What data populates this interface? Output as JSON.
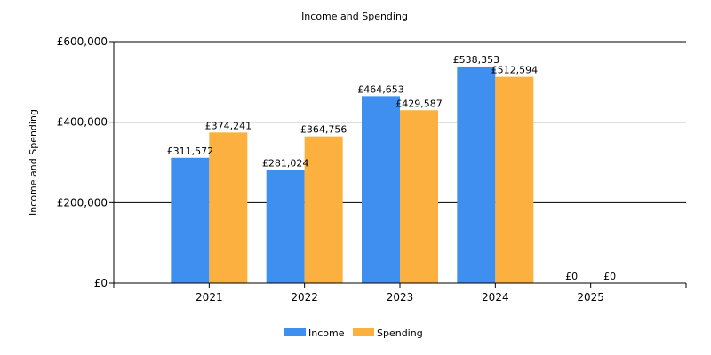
{
  "chart_data": {
    "type": "bar",
    "title": "Income and Spending",
    "xlabel": "",
    "ylabel": "Income and Spending",
    "categories": [
      "2021",
      "2022",
      "2023",
      "2024",
      "2025"
    ],
    "series": [
      {
        "name": "Income",
        "color": "#3f8ff0",
        "values": [
          311572,
          281024,
          464653,
          538353,
          0
        ],
        "labels": [
          "£311,572",
          "£281,024",
          "£464,653",
          "£538,353",
          "£0"
        ]
      },
      {
        "name": "Spending",
        "color": "#fbb040",
        "values": [
          374241,
          364756,
          429587,
          512594,
          0
        ],
        "labels": [
          "£374,241",
          "£364,756",
          "£429,587",
          "£512,594",
          "£0"
        ]
      }
    ],
    "ylim": [
      0,
      600000
    ],
    "yticks": [
      0,
      200000,
      400000,
      600000
    ],
    "ytick_labels": [
      "£0",
      "£200,000",
      "£400,000",
      "£600,000"
    ],
    "grid": "horizontal",
    "legend_position": "bottom-center"
  }
}
